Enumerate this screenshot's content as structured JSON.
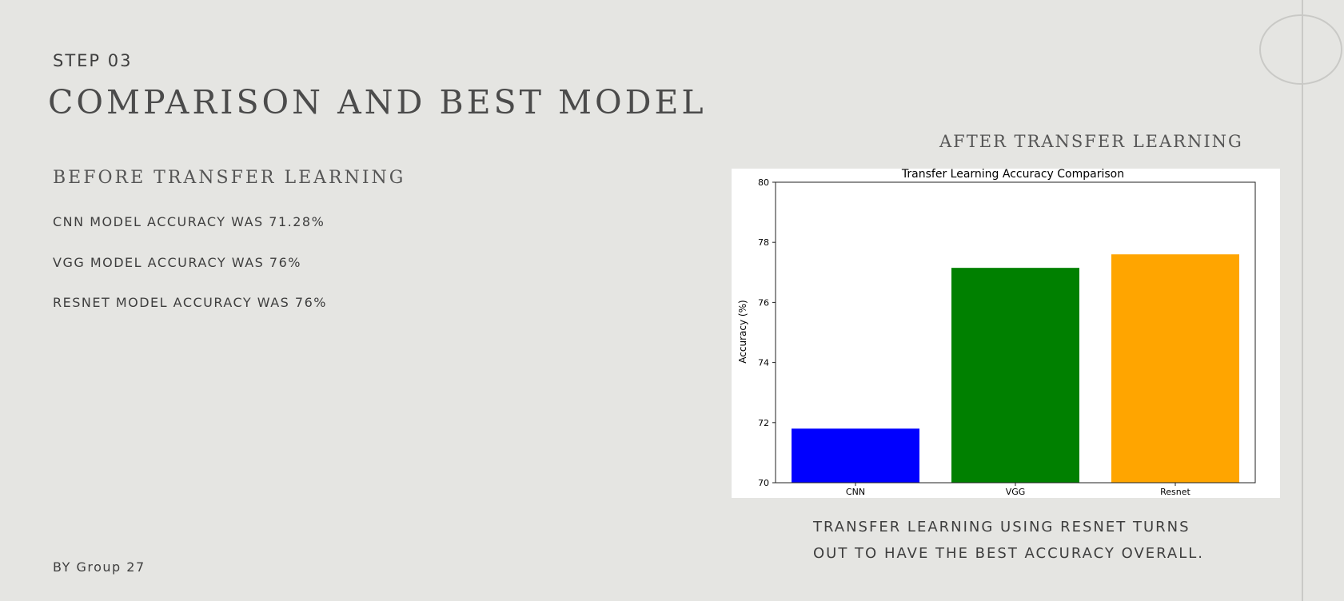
{
  "slide": {
    "step": "STEP 03",
    "title": "COMPARISON AND BEST MODEL",
    "before": {
      "heading": "BEFORE TRANSFER LEARNING",
      "lines": [
        "CNN MODEL ACCURACY WAS 71.28%",
        "VGG MODEL ACCURACY WAS 76%",
        "RESNET MODEL ACCURACY WAS 76%"
      ]
    },
    "after": {
      "heading": "AFTER TRANSFER LEARNING"
    },
    "conclusion": {
      "line1": "TRANSFER LEARNING USING RESNET TURNS",
      "line2": "OUT TO HAVE THE BEST ACCURACY OVERALL."
    },
    "byline": "BY Group 27"
  },
  "chart_data": {
    "type": "bar",
    "title": "Transfer Learning Accuracy Comparison",
    "xlabel": "",
    "ylabel": "Accuracy (%)",
    "categories": [
      "CNN",
      "VGG",
      "Resnet"
    ],
    "values": [
      71.8,
      77.15,
      77.6
    ],
    "colors": [
      "#0000ff",
      "#008000",
      "#ffa500"
    ],
    "ylim": [
      70,
      80
    ],
    "yticks": [
      "70",
      "72",
      "74",
      "76",
      "78",
      "80"
    ],
    "grid": false,
    "legend": "none"
  }
}
